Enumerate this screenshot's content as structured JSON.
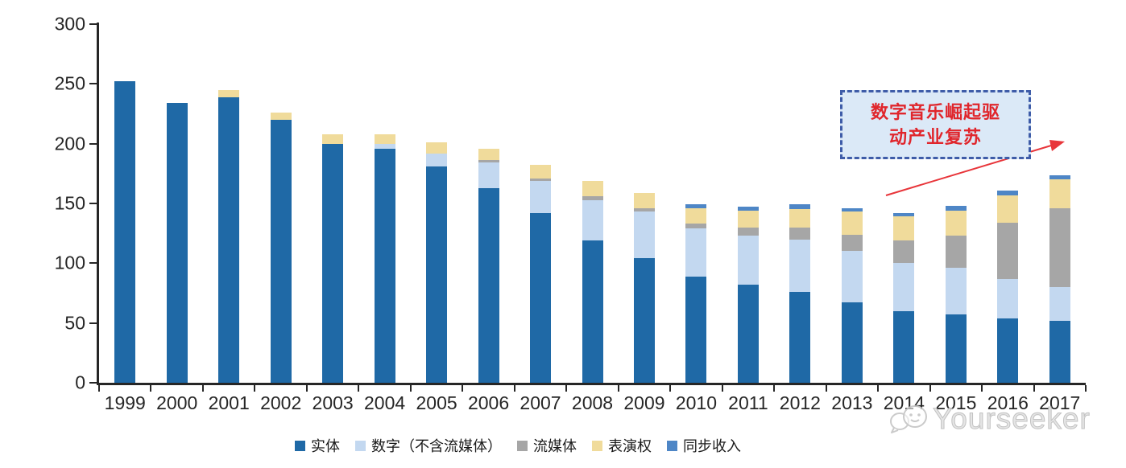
{
  "chart_data": {
    "type": "bar",
    "stacked": true,
    "title": "",
    "xlabel": "",
    "ylabel": "",
    "ylim": [
      0,
      300
    ],
    "yticks": [
      0,
      50,
      100,
      150,
      200,
      250,
      300
    ],
    "grid": false,
    "legend_position": "bottom",
    "categories": [
      "1999",
      "2000",
      "2001",
      "2002",
      "2003",
      "2004",
      "2005",
      "2006",
      "2007",
      "2008",
      "2009",
      "2010",
      "2011",
      "2012",
      "2013",
      "2014",
      "2015",
      "2016",
      "2017"
    ],
    "series": [
      {
        "id": "physical",
        "name": "实体",
        "color": "#1f69a6",
        "values": [
          252,
          234,
          239,
          220,
          200,
          196,
          181,
          163,
          142,
          119,
          104,
          89,
          82,
          76,
          67,
          60,
          57,
          54,
          52
        ]
      },
      {
        "id": "digital-excl-streaming",
        "name": "数字（不含流媒体）",
        "color": "#c3d8f0",
        "values": [
          0,
          0,
          0,
          0,
          0,
          4,
          11,
          21,
          27,
          34,
          39,
          40,
          41,
          44,
          43,
          40,
          39,
          33,
          28
        ]
      },
      {
        "id": "streaming",
        "name": "流媒体",
        "color": "#a6a6a6",
        "values": [
          0,
          0,
          0,
          0,
          0,
          0,
          0,
          2,
          2,
          3,
          3,
          4,
          7,
          10,
          14,
          19,
          27,
          47,
          66
        ]
      },
      {
        "id": "performance-rights",
        "name": "表演权",
        "color": "#f0db9b",
        "values": [
          0,
          0,
          6,
          6,
          8,
          8,
          9,
          10,
          11,
          13,
          13,
          13,
          14,
          15,
          19,
          20,
          21,
          23,
          24
        ]
      },
      {
        "id": "sync",
        "name": "同步收入",
        "color": "#4e86c6",
        "values": [
          0,
          0,
          0,
          0,
          0,
          0,
          0,
          0,
          0,
          0,
          0,
          3,
          3,
          4,
          3,
          3,
          4,
          4,
          3.5
        ]
      }
    ]
  },
  "annotation": {
    "line1": "数字音乐崛起驱",
    "line2": "动产业复苏",
    "text_color": "#e0262c",
    "box_fill": "#dbe9f7",
    "border_color": "#3e5ca8",
    "arrow_color": "#e8353a"
  },
  "axis_color": "#262626",
  "watermark": {
    "text": "Yourseeker",
    "color": "#c9c9c9"
  }
}
